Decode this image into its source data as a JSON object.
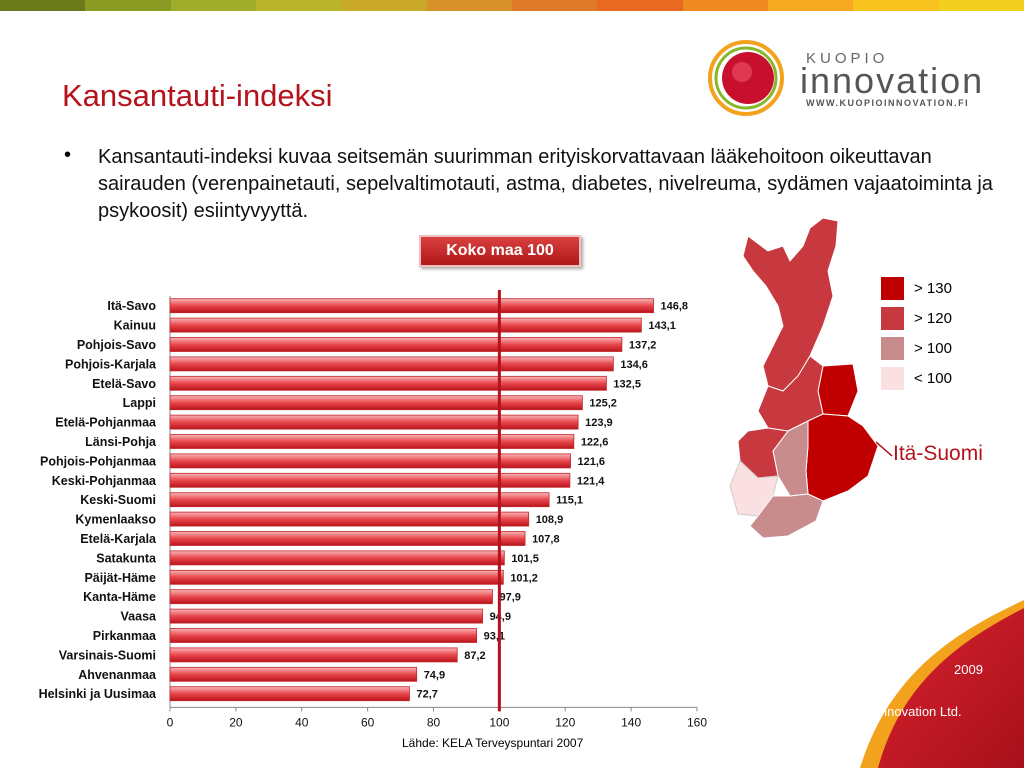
{
  "header": {
    "title": "Kansantauti-indeksi",
    "bullet_symbol": "•",
    "bullet_text": "Kansantauti-indeksi kuvaa seitsemän suurimman erityiskorvattavaan lääkehoitoon oikeuttavan sairauden (verenpainetauti, sepelvaltimotauti, astma, diabetes, nivelreuma, sydämen vajaatoiminta ja psykoosit) esiintyvyyttä."
  },
  "logo": {
    "word1": "KUOPIO",
    "word2": "innovation",
    "url": "WWW.KUOPIOINNOVATION.FI"
  },
  "callout": {
    "label": "Koko maa 100"
  },
  "map_legend": {
    "items": [
      {
        "label": "> 130",
        "color": "#c00000"
      },
      {
        "label": "> 120",
        "color": "#c8393f"
      },
      {
        "label": "> 100",
        "color": "#c98c8d"
      },
      {
        "label": "< 100",
        "color": "#fbe0e2"
      }
    ],
    "highlight_label": "Itä-Suomi"
  },
  "footer": {
    "year": "2009",
    "copyright": "© Kuopio Innovation Ltd.",
    "source": "Lähde: KELA Terveyspuntari 2007"
  },
  "colors": {
    "accent": "#b5121b",
    "bar_fill": "#e8474c",
    "reference_line": "#b5121b"
  },
  "chart_data": {
    "type": "bar",
    "orientation": "horizontal",
    "categories": [
      "Itä-Savo",
      "Kainuu",
      "Pohjois-Savo",
      "Pohjois-Karjala",
      "Etelä-Savo",
      "Lappi",
      "Etelä-Pohjanmaa",
      "Länsi-Pohja",
      "Pohjois-Pohjanmaa",
      "Keski-Pohjanmaa",
      "Keski-Suomi",
      "Kymenlaakso",
      "Etelä-Karjala",
      "Satakunta",
      "Päijät-Häme",
      "Kanta-Häme",
      "Vaasa",
      "Pirkanmaa",
      "Varsinais-Suomi",
      "Ahvenanmaa",
      "Helsinki ja Uusimaa"
    ],
    "values": [
      146.8,
      143.1,
      137.2,
      134.6,
      132.5,
      125.2,
      123.9,
      122.6,
      121.6,
      121.4,
      115.1,
      108.9,
      107.8,
      101.5,
      101.2,
      97.9,
      94.9,
      93.1,
      87.2,
      74.9,
      72.7
    ],
    "value_labels": [
      "146,8",
      "143,1",
      "137,2",
      "134,6",
      "132,5",
      "125,2",
      "123,9",
      "122,6",
      "121,6",
      "121,4",
      "115,1",
      "108,9",
      "107,8",
      "101,5",
      "101,2",
      "97,9",
      "94,9",
      "93,1",
      "87,2",
      "74,9",
      "72,7"
    ],
    "xlim": [
      0,
      160
    ],
    "xticks": [
      "0",
      "20",
      "40",
      "60",
      "80",
      "100",
      "120",
      "140",
      "160"
    ],
    "reference_value": 100,
    "title": "",
    "xlabel": "",
    "ylabel": "",
    "grid": false
  }
}
